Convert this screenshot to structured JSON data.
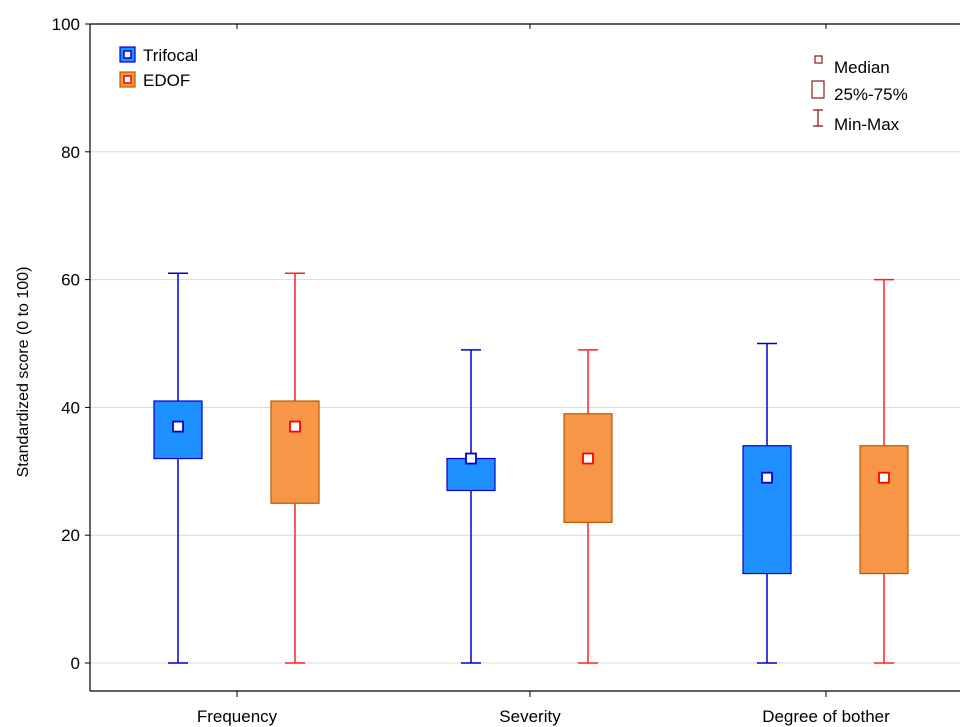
{
  "chart_data": {
    "type": "box",
    "ylabel": "Standardized score (0 to 100)",
    "xlabel": "",
    "ylim": [
      0,
      100
    ],
    "yticks": [
      0,
      20,
      40,
      60,
      80,
      100
    ],
    "grid": "horizontal",
    "categories": [
      "Frequency",
      "Severity",
      "Degree of bother"
    ],
    "series": [
      {
        "name": "Trifocal",
        "fill": "#1e90ff",
        "stroke": "#0000d0",
        "whisker": "#0000d0",
        "median_fill": "#ffffff",
        "median_stroke": "#0000d0",
        "boxes": [
          {
            "min": 0,
            "q1": 32,
            "median": 37,
            "q3": 41,
            "max": 61
          },
          {
            "min": 0,
            "q1": 27,
            "median": 32,
            "q3": 32,
            "max": 49
          },
          {
            "min": 0,
            "q1": 14,
            "median": 29,
            "q3": 34,
            "max": 50
          }
        ]
      },
      {
        "name": "EDOF",
        "fill": "#f79646",
        "stroke": "#b85a00",
        "whisker": "#ff2020",
        "median_fill": "#ffffff",
        "median_stroke": "#ff0000",
        "boxes": [
          {
            "min": 0,
            "q1": 25,
            "median": 37,
            "q3": 41,
            "max": 61
          },
          {
            "min": 0,
            "q1": 22,
            "median": 32,
            "q3": 39,
            "max": 49
          },
          {
            "min": 0,
            "q1": 14,
            "median": 29,
            "q3": 34,
            "max": 60
          }
        ]
      }
    ],
    "legend": {
      "series_position": "top-left",
      "stats_position": "top-right",
      "stats_color": "#8b1a1a",
      "stats": {
        "median": "Median",
        "box": "25%-75%",
        "whisker": "Min-Max"
      }
    }
  }
}
